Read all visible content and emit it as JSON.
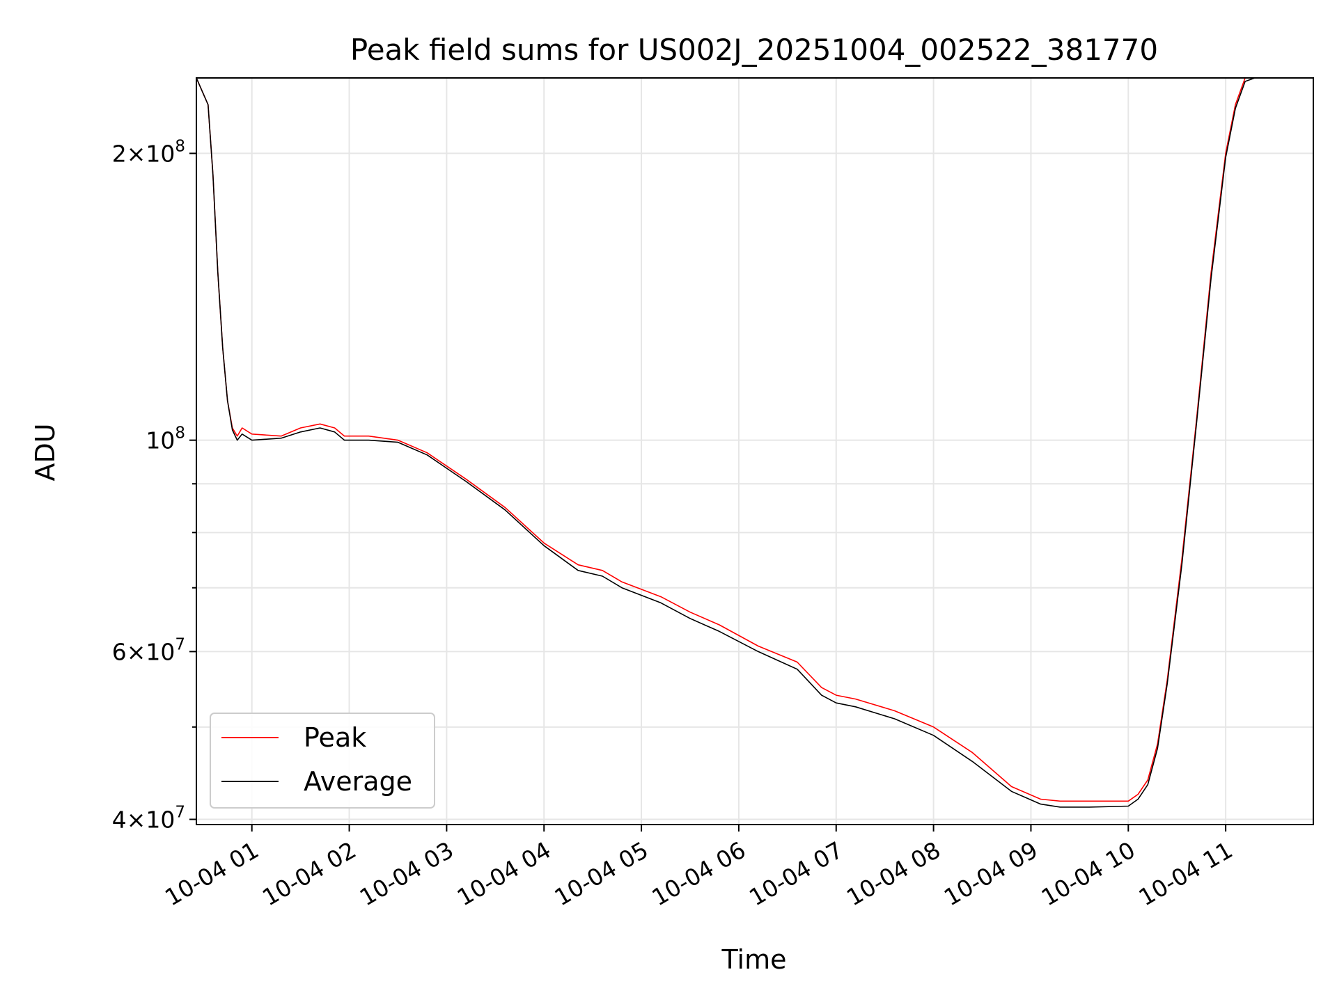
{
  "chart_data": {
    "type": "line",
    "title": "Peak field sums for US002J_20251004_002522_381770",
    "xlabel": "Time",
    "ylabel": "ADU",
    "yscale": "log",
    "xlim": [
      0.43,
      11.9
    ],
    "ylim": [
      39500000,
      240000000
    ],
    "grid": true,
    "legend_position": "lower-left",
    "x_tick_values": [
      1,
      2,
      3,
      4,
      5,
      6,
      7,
      8,
      9,
      10,
      11
    ],
    "x_tick_labels": [
      "10-04 01",
      "10-04 02",
      "10-04 03",
      "10-04 04",
      "10-04 05",
      "10-04 06",
      "10-04 07",
      "10-04 08",
      "10-04 09",
      "10-04 10",
      "10-04 11"
    ],
    "y_major_ticks": [
      {
        "value": 40000000,
        "mantissa": "4",
        "exponent": "7"
      },
      {
        "value": 60000000,
        "mantissa": "6",
        "exponent": "7"
      },
      {
        "value": 100000000,
        "mantissa": "",
        "exponent": "8"
      },
      {
        "value": 200000000,
        "mantissa": "2",
        "exponent": "8"
      }
    ],
    "y_minor_ticks": [
      50000000,
      70000000,
      80000000,
      90000000,
      300000000
    ],
    "x_units": "hours since 2025-10-04 00:00",
    "series": [
      {
        "name": "Peak",
        "color": "#ff0000",
        "x": [
          0.43,
          0.55,
          0.6,
          0.65,
          0.7,
          0.75,
          0.8,
          0.85,
          0.9,
          1.0,
          1.3,
          1.5,
          1.7,
          1.85,
          1.95,
          2.2,
          2.5,
          2.8,
          3.2,
          3.6,
          4.0,
          4.35,
          4.6,
          4.8,
          5.2,
          5.5,
          5.8,
          6.2,
          6.6,
          6.85,
          7.0,
          7.2,
          7.6,
          8.0,
          8.4,
          8.8,
          9.1,
          9.3,
          9.6,
          10.0,
          10.1,
          10.2,
          10.3,
          10.4,
          10.55,
          10.7,
          10.85,
          11.0,
          11.1,
          11.2,
          11.3,
          11.45,
          11.7,
          11.9
        ],
        "values": [
          240000000,
          225000000,
          190000000,
          150000000,
          125000000,
          110000000,
          103000000,
          101000000,
          103000000,
          101500000,
          101000000,
          103000000,
          104000000,
          103000000,
          101000000,
          101000000,
          100000000,
          97000000,
          91000000,
          85000000,
          78000000,
          74000000,
          73000000,
          71000000,
          68500000,
          66000000,
          64000000,
          60800000,
          58500000,
          55000000,
          54000000,
          53500000,
          52000000,
          50000000,
          47000000,
          43300000,
          42000000,
          41800000,
          41800000,
          41800000,
          42500000,
          44000000,
          48000000,
          56000000,
          75000000,
          105000000,
          150000000,
          200000000,
          225000000,
          240000000,
          240000000,
          240000000,
          240000000,
          240000000
        ]
      },
      {
        "name": "Average",
        "color": "#000000",
        "x": [
          0.43,
          0.55,
          0.6,
          0.65,
          0.7,
          0.75,
          0.8,
          0.85,
          0.9,
          1.0,
          1.3,
          1.5,
          1.7,
          1.85,
          1.95,
          2.2,
          2.5,
          2.8,
          3.2,
          3.6,
          4.0,
          4.35,
          4.6,
          4.8,
          5.2,
          5.5,
          5.8,
          6.2,
          6.6,
          6.85,
          7.0,
          7.2,
          7.6,
          8.0,
          8.4,
          8.8,
          9.1,
          9.3,
          9.6,
          10.0,
          10.1,
          10.2,
          10.3,
          10.4,
          10.55,
          10.7,
          10.85,
          11.0,
          11.1,
          11.2,
          11.3,
          11.45,
          11.7,
          11.9
        ],
        "values": [
          240000000,
          225000000,
          190000000,
          150000000,
          125000000,
          110000000,
          102500000,
          100000000,
          101500000,
          100000000,
          100500000,
          102000000,
          103000000,
          102000000,
          100000000,
          100000000,
          99500000,
          96500000,
          90500000,
          84500000,
          77500000,
          73000000,
          72000000,
          70000000,
          67500000,
          65000000,
          63000000,
          60000000,
          57500000,
          54000000,
          53000000,
          52500000,
          51000000,
          49000000,
          46000000,
          42800000,
          41500000,
          41200000,
          41200000,
          41300000,
          42000000,
          43500000,
          47500000,
          55500000,
          74000000,
          104000000,
          148000000,
          198000000,
          223000000,
          238000000,
          240000000,
          240000000,
          240000000,
          240000000
        ]
      }
    ]
  }
}
